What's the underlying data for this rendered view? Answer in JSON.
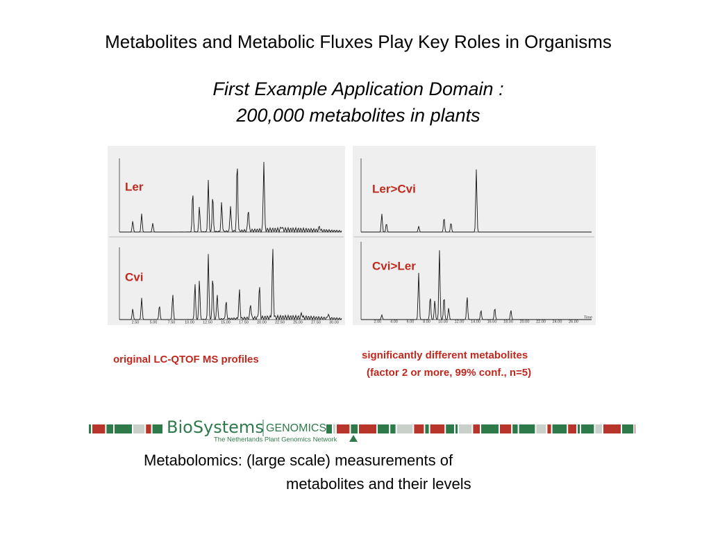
{
  "title": "Metabolites and Metabolic Fluxes Play Key Roles in Organisms",
  "subtitle": [
    "First Example Application Domain :",
    "200,000 metabolites in plants"
  ],
  "panels": [
    {
      "label": "Ler"
    },
    {
      "label": "Cvi"
    },
    {
      "label": "Ler>Cvi"
    },
    {
      "label": "Cvi>Ler"
    }
  ],
  "left_axis": [
    "2.50",
    "5.00",
    "7.50",
    "10.00",
    "12.50",
    "15.00",
    "17.50",
    "20.00",
    "22.50",
    "25.00",
    "27.50",
    "30.00"
  ],
  "right_axis": [
    "2.00",
    "4.00",
    "6.00",
    "8.00",
    "10.00",
    "12.00",
    "14.00",
    "16.00",
    "18.00",
    "20.00",
    "22.00",
    "24.00",
    "26.00"
  ],
  "axis_name": "Time",
  "captions": {
    "left": "original LC-QTOF MS profiles",
    "right": [
      "significantly different metabolites",
      "(factor 2 or more, 99% conf., n=5)"
    ]
  },
  "logo": {
    "name": "BioSystems",
    "suffix": "GENOMICS",
    "tagline": "The Netherlands Plant Genomics Network"
  },
  "footer": [
    "Metabolomics:  (large scale) measurements of",
    "metabolites and their levels"
  ]
}
